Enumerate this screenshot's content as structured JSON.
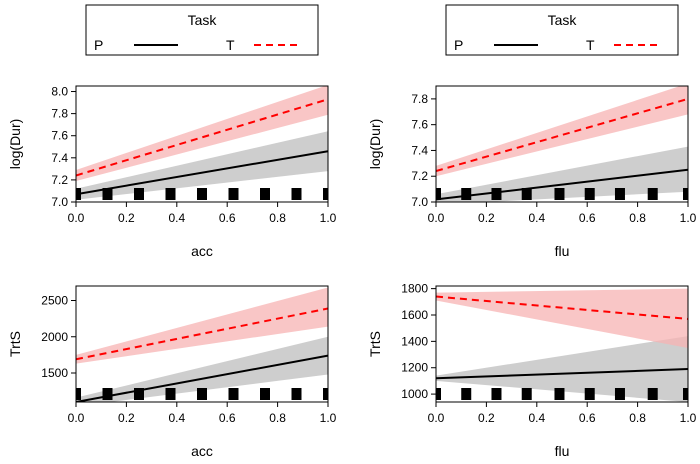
{
  "chart_data": [
    {
      "type": "line",
      "xlabel": "acc",
      "ylabel": "log(Dur)",
      "xlim": [
        0,
        1
      ],
      "ylim": [
        7.0,
        8.05
      ],
      "xticks": [
        0.0,
        0.2,
        0.4,
        0.6,
        0.8,
        1.0
      ],
      "xtick_labels": [
        "0.0",
        "0.2",
        "0.4",
        "0.6",
        "0.8",
        "1.0"
      ],
      "yticks": [
        7.0,
        7.2,
        7.4,
        7.6,
        7.8,
        8.0
      ],
      "ytick_labels": [
        "7.0",
        "7.2",
        "7.4",
        "7.6",
        "7.8",
        "8.0"
      ],
      "legend": {
        "title": "Task",
        "placement": "top"
      },
      "rug": [
        0.0,
        0.125,
        0.25,
        0.375,
        0.5,
        0.625,
        0.75,
        0.875,
        1.0
      ],
      "series": [
        {
          "name": "P",
          "style": "solid",
          "color": "#000000",
          "band_color": "#bdbdbd",
          "x": [
            0,
            1
          ],
          "y": [
            7.07,
            7.46
          ],
          "lower": [
            7.02,
            7.28
          ],
          "upper": [
            7.12,
            7.64
          ]
        },
        {
          "name": "T",
          "style": "dashed",
          "color": "#ff0000",
          "band_color": "#f7b3b3",
          "x": [
            0,
            1
          ],
          "y": [
            7.24,
            7.93
          ],
          "lower": [
            7.19,
            7.79
          ],
          "upper": [
            7.29,
            8.06
          ]
        }
      ]
    },
    {
      "type": "line",
      "xlabel": "flu",
      "ylabel": "log(Dur)",
      "xlim": [
        0,
        1
      ],
      "ylim": [
        7.0,
        7.9
      ],
      "xticks": [
        0.0,
        0.2,
        0.4,
        0.6,
        0.8,
        1.0
      ],
      "xtick_labels": [
        "0.0",
        "0.2",
        "0.4",
        "0.6",
        "0.8",
        "1.0"
      ],
      "yticks": [
        7.0,
        7.2,
        7.4,
        7.6,
        7.8
      ],
      "ytick_labels": [
        "7.0",
        "7.2",
        "7.4",
        "7.6",
        "7.8"
      ],
      "legend": {
        "title": "Task",
        "placement": "top"
      },
      "rug": [
        0.0,
        0.12,
        0.24,
        0.36,
        0.49,
        0.61,
        0.73,
        0.86,
        1.0
      ],
      "series": [
        {
          "name": "P",
          "style": "solid",
          "color": "#000000",
          "band_color": "#bdbdbd",
          "x": [
            0,
            1
          ],
          "y": [
            7.02,
            7.25
          ],
          "lower": [
            6.98,
            7.08
          ],
          "upper": [
            7.06,
            7.43
          ]
        },
        {
          "name": "T",
          "style": "dashed",
          "color": "#ff0000",
          "band_color": "#f7b3b3",
          "x": [
            0,
            1
          ],
          "y": [
            7.24,
            7.8
          ],
          "lower": [
            7.2,
            7.68
          ],
          "upper": [
            7.28,
            7.92
          ]
        }
      ]
    },
    {
      "type": "line",
      "xlabel": "acc",
      "ylabel": "TrtS",
      "xlim": [
        0,
        1
      ],
      "ylim": [
        1100,
        2700
      ],
      "xticks": [
        0.0,
        0.2,
        0.4,
        0.6,
        0.8,
        1.0
      ],
      "xtick_labels": [
        "0.0",
        "0.2",
        "0.4",
        "0.6",
        "0.8",
        "1.0"
      ],
      "yticks": [
        1500,
        2000,
        2500
      ],
      "ytick_labels": [
        "1500",
        "2000",
        "2500"
      ],
      "rug": [
        0.0,
        0.125,
        0.25,
        0.375,
        0.5,
        0.625,
        0.75,
        0.875,
        1.0
      ],
      "series": [
        {
          "name": "P",
          "style": "solid",
          "color": "#000000",
          "band_color": "#bdbdbd",
          "x": [
            0,
            1
          ],
          "y": [
            1100,
            1740
          ],
          "lower": [
            1040,
            1480
          ],
          "upper": [
            1160,
            2000
          ]
        },
        {
          "name": "T",
          "style": "dashed",
          "color": "#ff0000",
          "band_color": "#f7b3b3",
          "x": [
            0,
            1
          ],
          "y": [
            1690,
            2390
          ],
          "lower": [
            1630,
            2140
          ],
          "upper": [
            1750,
            2680
          ]
        }
      ]
    },
    {
      "type": "line",
      "xlabel": "flu",
      "ylabel": "TrtS",
      "xlim": [
        0,
        1
      ],
      "ylim": [
        940,
        1820
      ],
      "xticks": [
        0.0,
        0.2,
        0.4,
        0.6,
        0.8,
        1.0
      ],
      "xtick_labels": [
        "0.0",
        "0.2",
        "0.4",
        "0.6",
        "0.8",
        "1.0"
      ],
      "yticks": [
        1000,
        1200,
        1400,
        1600,
        1800
      ],
      "ytick_labels": [
        "1000",
        "1200",
        "1400",
        "1600",
        "1800"
      ],
      "rug": [
        0.0,
        0.12,
        0.24,
        0.36,
        0.49,
        0.61,
        0.73,
        0.86,
        1.0
      ],
      "series": [
        {
          "name": "P",
          "style": "solid",
          "color": "#000000",
          "band_color": "#bdbdbd",
          "x": [
            0,
            1
          ],
          "y": [
            1120,
            1190
          ],
          "lower": [
            1100,
            940
          ],
          "upper": [
            1140,
            1440
          ]
        },
        {
          "name": "T",
          "style": "dashed",
          "color": "#ff0000",
          "band_color": "#f7b3b3",
          "x": [
            0,
            1
          ],
          "y": [
            1740,
            1570
          ],
          "lower": [
            1710,
            1350
          ],
          "upper": [
            1770,
            1800
          ]
        }
      ]
    }
  ]
}
